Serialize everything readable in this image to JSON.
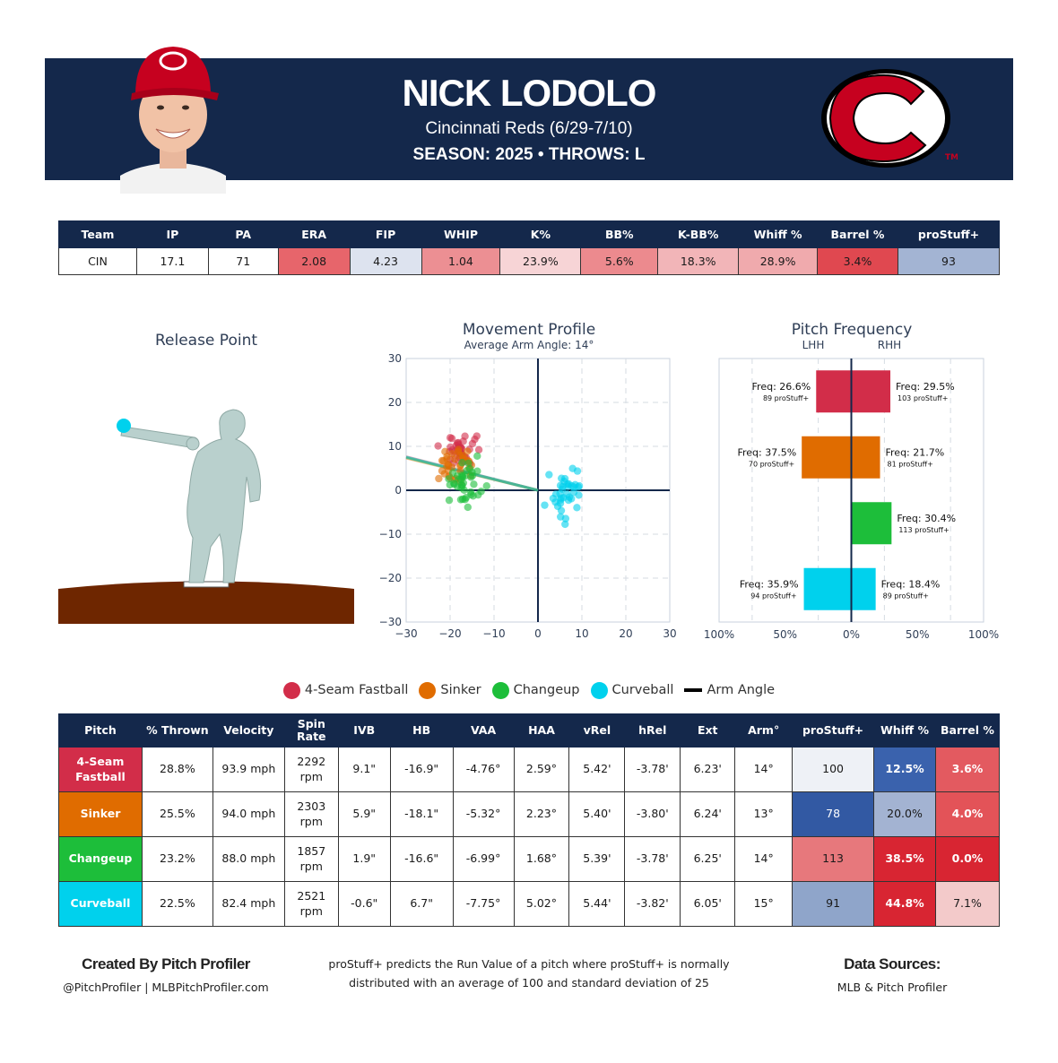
{
  "header": {
    "player_name": "NICK LODOLO",
    "team_line": "Cincinnati Reds (6/29-7/10)",
    "season_line": "SEASON: 2025 • THROWS: L"
  },
  "colors": {
    "navy": "#14284b",
    "fastball": "#d22d49",
    "sinker": "#e06c00",
    "changeup": "#1dbe3a",
    "curveball": "#00d1ed",
    "mound": "#6e2600"
  },
  "stats": {
    "headers": [
      "Team",
      "IP",
      "PA",
      "ERA",
      "FIP",
      "WHIP",
      "K%",
      "BB%",
      "K-BB%",
      "Whiff %",
      "Barrel %",
      "proStuff+"
    ],
    "values": [
      "CIN",
      "17.1",
      "71",
      "2.08",
      "4.23",
      "1.04",
      "23.9%",
      "5.6%",
      "18.3%",
      "28.9%",
      "3.4%",
      "93"
    ],
    "cell_colors": [
      "#ffffff",
      "#ffffff",
      "#ffffff",
      "#e7656b",
      "#dde3ef",
      "#ec8f93",
      "#f7d4d6",
      "#ec8a8e",
      "#f2b5b8",
      "#f0aaad",
      "#e04850",
      "#a3b4d3"
    ]
  },
  "release_point": {
    "title": "Release Point"
  },
  "movement": {
    "title": "Movement Profile",
    "subtitle": "Average Arm Angle: 14°"
  },
  "frequency": {
    "title": "Pitch Frequency",
    "lhh_label": "LHH",
    "rhh_label": "RHH"
  },
  "legend": {
    "items": [
      {
        "label": "4-Seam Fastball",
        "color": "#d22d49",
        "icon": "circle"
      },
      {
        "label": "Sinker",
        "color": "#e06c00",
        "icon": "circle"
      },
      {
        "label": "Changeup",
        "color": "#1dbe3a",
        "icon": "circle"
      },
      {
        "label": "Curveball",
        "color": "#00d1ed",
        "icon": "circle"
      },
      {
        "label": "Arm Angle",
        "color": "#000000",
        "icon": "line"
      }
    ]
  },
  "chart_data": [
    {
      "type": "scatter",
      "title": "Movement Profile",
      "subtitle": "Average Arm Angle: 14°",
      "xlim": [
        -30,
        30
      ],
      "ylim": [
        -30,
        30
      ],
      "xticks": [
        -30,
        -20,
        -10,
        0,
        10,
        20,
        30
      ],
      "yticks": [
        -30,
        -20,
        -10,
        0,
        10,
        20,
        30
      ],
      "grid": true,
      "series": [
        {
          "name": "4-Seam Fastball",
          "color": "#d22d49",
          "center": [
            -16.9,
            9.1
          ],
          "spread": [
            2.0,
            1.6
          ],
          "count": 40
        },
        {
          "name": "Sinker",
          "color": "#e06c00",
          "center": [
            -18.1,
            5.9
          ],
          "spread": [
            2.0,
            1.8
          ],
          "count": 35
        },
        {
          "name": "Changeup",
          "color": "#1dbe3a",
          "center": [
            -16.6,
            1.9
          ],
          "spread": [
            2.0,
            2.6
          ],
          "count": 40
        },
        {
          "name": "Curveball",
          "color": "#00d1ed",
          "center": [
            6.7,
            -0.6
          ],
          "spread": [
            1.9,
            2.4
          ],
          "count": 38
        }
      ],
      "arm_angle_deg": 14
    },
    {
      "type": "bar",
      "title": "Pitch Frequency",
      "xlim": [
        -100,
        100
      ],
      "xticks": [
        -100,
        -50,
        0,
        50,
        100
      ],
      "xtick_labels": [
        "100%",
        "50%",
        "0%",
        "50%",
        "100%"
      ],
      "categories": [
        "4-Seam Fastball",
        "Sinker",
        "Changeup",
        "Curveball"
      ],
      "series": [
        {
          "name": "LHH",
          "values": [
            26.6,
            37.5,
            0,
            35.9
          ],
          "prostuff": [
            89,
            70,
            null,
            94
          ]
        },
        {
          "name": "RHH",
          "values": [
            29.5,
            21.7,
            30.4,
            18.4
          ],
          "prostuff": [
            103,
            81,
            113,
            89
          ]
        }
      ],
      "freq_prefix": "Freq: ",
      "prostuff_suffix": " proStuff+"
    }
  ],
  "pitch_table": {
    "headers": [
      "Pitch",
      "% Thrown",
      "Velocity",
      "Spin Rate",
      "IVB",
      "HB",
      "VAA",
      "HAA",
      "vRel",
      "hRel",
      "Ext",
      "Arm°",
      "proStuff+",
      "Whiff %",
      "Barrel %"
    ],
    "rows": [
      {
        "pitch": "4-Seam Fastball",
        "color": "#d22d49",
        "values": [
          "28.8%",
          "93.9 mph",
          "2292 rpm",
          "9.1\"",
          "-16.9\"",
          "-4.76°",
          "2.59°",
          "5.42'",
          "-3.78'",
          "6.23'",
          "14°",
          "100",
          "12.5%",
          "3.6%"
        ],
        "metric_colors": [
          "#eef1f6",
          "#3a62ad",
          "#e35a60"
        ]
      },
      {
        "pitch": "Sinker",
        "color": "#e06c00",
        "values": [
          "25.5%",
          "94.0 mph",
          "2303 rpm",
          "5.9\"",
          "-18.1\"",
          "-5.32°",
          "2.23°",
          "5.40'",
          "-3.80'",
          "6.24'",
          "13°",
          "78",
          "20.0%",
          "4.0%"
        ],
        "metric_colors": [
          "#3259a3",
          "#a3b3d2",
          "#e35358"
        ]
      },
      {
        "pitch": "Changeup",
        "color": "#1dbe3a",
        "values": [
          "23.2%",
          "88.0 mph",
          "1857 rpm",
          "1.9\"",
          "-16.6\"",
          "-6.99°",
          "1.68°",
          "5.39'",
          "-3.78'",
          "6.25'",
          "14°",
          "113",
          "38.5%",
          "0.0%"
        ],
        "metric_colors": [
          "#e7787c",
          "#d82532",
          "#d82532"
        ]
      },
      {
        "pitch": "Curveball",
        "color": "#00d1ed",
        "values": [
          "22.5%",
          "82.4 mph",
          "2521 rpm",
          "-0.6\"",
          "6.7\"",
          "-7.75°",
          "5.02°",
          "5.44'",
          "-3.82'",
          "6.05'",
          "15°",
          "91",
          "44.8%",
          "7.1%"
        ],
        "metric_colors": [
          "#8fa5ca",
          "#d82532",
          "#f3caca"
        ]
      }
    ]
  },
  "footer": {
    "left_title": "Created By Pitch Profiler",
    "left_text": "@PitchProfiler | MLBPitchProfiler.com",
    "center_text_1": "proStuff+ predicts the Run Value of a pitch where proStuff+ is normally",
    "center_text_2": "distributed with an average of 100 and standard deviation of 25",
    "right_title": "Data Sources:",
    "right_text": "MLB & Pitch Profiler"
  }
}
